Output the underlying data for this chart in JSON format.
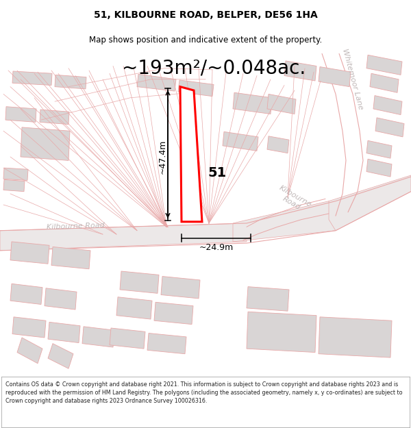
{
  "title": "51, KILBOURNE ROAD, BELPER, DE56 1HA",
  "subtitle": "Map shows position and indicative extent of the property.",
  "area_text": "~193m²/~0.048ac.",
  "dim_width": "~24.9m",
  "dim_height": "~47.4m",
  "label_51": "51",
  "footer": "Contains OS data © Crown copyright and database right 2021. This information is subject to Crown copyright and database rights 2023 and is reproduced with the permission of HM Land Registry. The polygons (including the associated geometry, namely x, y co-ordinates) are subject to Crown copyright and database rights 2023 Ordnance Survey 100026316.",
  "bg_color": "#ffffff",
  "map_bg": "#f7f4f4",
  "road_fill": "#e8e4e4",
  "building_fill": "#d9d5d5",
  "cadastral_color": "#e8a8a8",
  "highlight_color": "#ff0000",
  "black": "#000000",
  "road_label_color": "#c0b8b8",
  "title_fontsize": 10,
  "subtitle_fontsize": 8.5,
  "area_fontsize": 20,
  "dim_fontsize": 9,
  "label_fontsize": 14,
  "road_label_fontsize": 8,
  "footer_fontsize": 5.8
}
